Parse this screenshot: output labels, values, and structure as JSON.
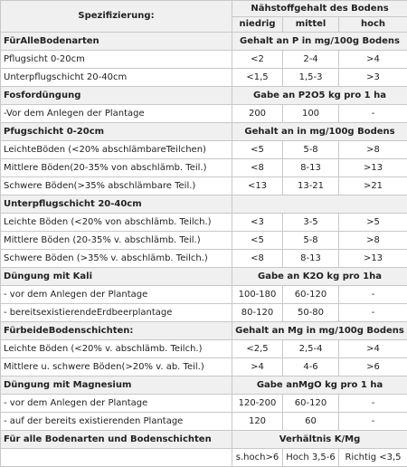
{
  "header": {
    "spec_label": "Spezifizierung:",
    "content_label": "Nähstoffgehalt des Bodens",
    "col_low": "niedrig",
    "col_mid": "mittel",
    "col_high": "hoch"
  },
  "rows": [
    {
      "type": "section",
      "label": "FürAlleBodenarten",
      "value": "Gehalt an P in mg/100g Bodens"
    },
    {
      "type": "data",
      "label": "Pflugsicht 0-20cm",
      "v": [
        "<2",
        "2-4",
        ">4"
      ]
    },
    {
      "type": "data",
      "label": "Unterpflugschicht 20-40cm",
      "v": [
        "<1,5",
        "1,5-3",
        ">3"
      ]
    },
    {
      "type": "section",
      "label": "Fosfordüngung",
      "value": "Gabe an P2O5 kg pro 1 ha"
    },
    {
      "type": "data",
      "label": "-Vor dem Anlegen der Plantage",
      "v": [
        "200",
        "100",
        "-"
      ]
    },
    {
      "type": "section",
      "label": "Pfugschicht 0-20cm",
      "value": "Gehalt an in mg/100g Bodens"
    },
    {
      "type": "data",
      "label": "LeichteBöden (<20% abschlämbareTeilchen)",
      "v": [
        "<5",
        "5-8",
        ">8"
      ]
    },
    {
      "type": "data",
      "label": "Mittlere Böden(20-35% von abschlämb. Teil.)",
      "v": [
        "<8",
        "8-13",
        ">13"
      ]
    },
    {
      "type": "data",
      "label": "Schwere Böden(>35% abschlämbare Teil.)",
      "v": [
        "<13",
        "13-21",
        ">21"
      ]
    },
    {
      "type": "section",
      "label": "Unterpflugschicht 20-40cm",
      "value": ""
    },
    {
      "type": "data",
      "label": "Leichte Böden (<20% von abschlämb. Teilch.)",
      "v": [
        "<3",
        "3-5",
        ">5"
      ]
    },
    {
      "type": "data",
      "label": "Mittlere Böden (20-35% v. abschlämb. Teil.)",
      "v": [
        "<5",
        "5-8",
        ">8"
      ]
    },
    {
      "type": "data",
      "label": "Schwere Böden (>35% v. abschlämb. Teilch.)",
      "v": [
        "<8",
        "8-13",
        ">13"
      ]
    },
    {
      "type": "section",
      "label": "Düngung mit Kali",
      "value": "Gabe an K2O kg pro 1ha"
    },
    {
      "type": "data",
      "label": "- vor dem Anlegen der Plantage",
      "v": [
        "100-180",
        "60-120",
        "-"
      ]
    },
    {
      "type": "data",
      "label": "- bereitsexistierendeErdbeerplantage",
      "v": [
        "80-120",
        "50-80",
        "-"
      ]
    },
    {
      "type": "section",
      "label": "FürbeideBodenschichten:",
      "value": "Gehalt an Mg in mg/100g Bodens"
    },
    {
      "type": "data",
      "label": "Leichte Böden (<20% v. abschlämb. Teilch.)",
      "v": [
        "<2,5",
        "2,5-4",
        ">4"
      ]
    },
    {
      "type": "data",
      "label": "Mittlere u. schwere Böden(>20% v. ab. Teil.)",
      "v": [
        ">4",
        "4-6",
        ">6"
      ]
    },
    {
      "type": "section",
      "label": "Düngung mit Magnesium",
      "value": "Gabe anMgO kg pro 1 ha"
    },
    {
      "type": "data",
      "label": "- vor dem Anlegen der Plantage",
      "v": [
        "120-200",
        "60-120",
        "-"
      ]
    },
    {
      "type": "data",
      "label": "- auf der bereits existierenden Plantage",
      "v": [
        "120",
        "60",
        "-"
      ]
    },
    {
      "type": "section",
      "label": "Für alle Bodenarten und Bodenschichten",
      "value": "Verhältnis K/Mg"
    },
    {
      "type": "data",
      "label": "",
      "v": [
        "s.hoch>6",
        "Hoch 3,5-6",
        "Richtig <3,5"
      ]
    }
  ]
}
